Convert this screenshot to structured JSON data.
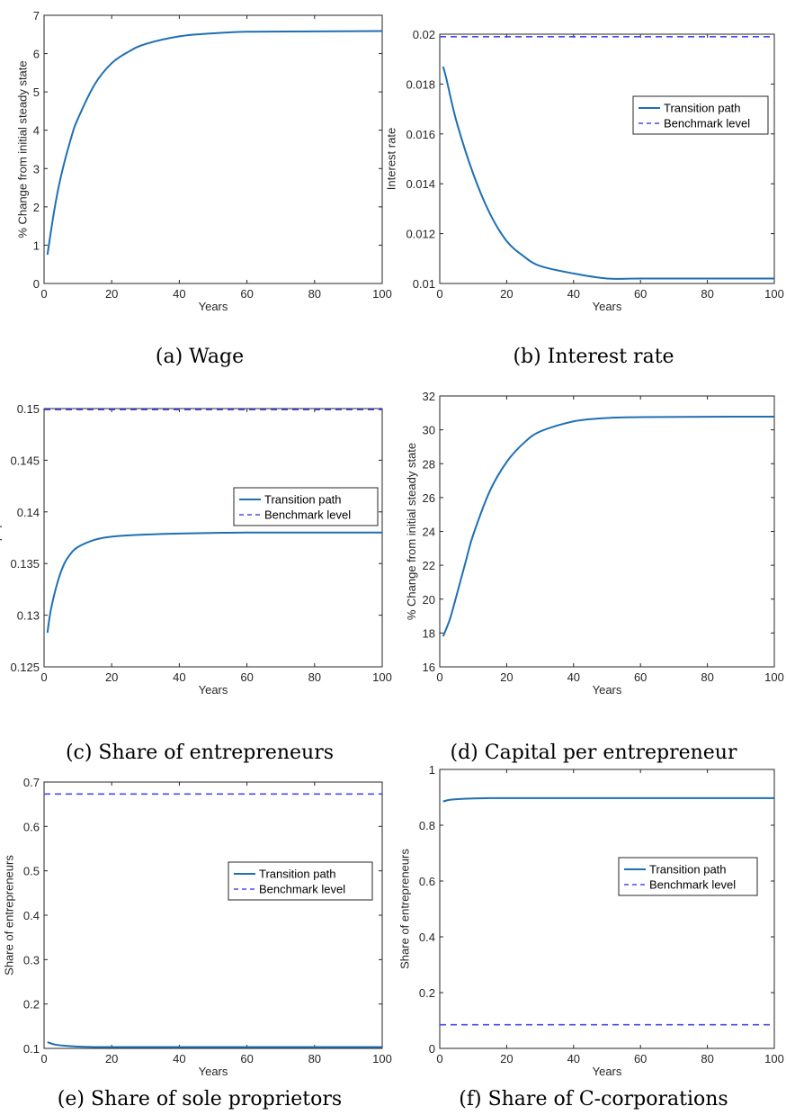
{
  "colors": {
    "path": "#1f6fb3",
    "benchmark": "#4a4af0",
    "axis": "#262626"
  },
  "chart_data": [
    {
      "type": "line",
      "caption": "(a) Wage",
      "xlabel": "Years",
      "ylabel": "% Change from initial steady state",
      "xlim": [
        0,
        100
      ],
      "ylim": [
        0,
        7
      ],
      "xticks": [
        0,
        20,
        40,
        60,
        80,
        100
      ],
      "yticks": [
        0,
        1,
        2,
        3,
        4,
        5,
        6,
        7
      ],
      "tick_labels_y": [
        "0",
        "1",
        "2",
        "3",
        "4",
        "5",
        "6",
        "7"
      ],
      "legend": null,
      "series": [
        {
          "style": "solid",
          "x": [
            1,
            3,
            5,
            8,
            10,
            15,
            20,
            25,
            30,
            40,
            50,
            60,
            80,
            100
          ],
          "y": [
            0.75,
            1.9,
            2.8,
            3.8,
            4.3,
            5.2,
            5.75,
            6.05,
            6.25,
            6.45,
            6.53,
            6.57,
            6.58,
            6.59
          ]
        }
      ]
    },
    {
      "type": "line",
      "caption": "(b) Interest rate",
      "xlabel": "Years",
      "ylabel": "Interest rate",
      "xlim": [
        0,
        100
      ],
      "ylim": [
        0.01,
        0.02
      ],
      "xticks": [
        0,
        20,
        40,
        60,
        80,
        100
      ],
      "yticks": [
        0.01,
        0.012,
        0.014,
        0.016,
        0.018,
        0.02
      ],
      "tick_labels_y": [
        "0.01",
        "0.012",
        "0.014",
        "0.016",
        "0.018",
        "0.02"
      ],
      "legend": {
        "position": "upper-right",
        "entries": [
          "Transition path",
          "Benchmark level"
        ]
      },
      "series": [
        {
          "name": "Transition path",
          "style": "solid",
          "x": [
            1,
            2,
            5,
            10,
            15,
            20,
            25,
            30,
            40,
            50,
            60,
            80,
            100
          ],
          "y": [
            0.0187,
            0.0182,
            0.0165,
            0.0144,
            0.0128,
            0.0117,
            0.0111,
            0.0107,
            0.0104,
            0.0102,
            0.0102,
            0.0102,
            0.0102
          ]
        },
        {
          "name": "Benchmark level",
          "style": "dashed",
          "x": [
            0,
            100
          ],
          "y": [
            0.0199,
            0.0199
          ]
        }
      ]
    },
    {
      "type": "line",
      "caption": "(c) Share of entrepreneurs",
      "xlabel": "Years",
      "ylabel": "Share of population",
      "xlim": [
        0,
        100
      ],
      "ylim": [
        0.125,
        0.15
      ],
      "xticks": [
        0,
        20,
        40,
        60,
        80,
        100
      ],
      "yticks": [
        0.125,
        0.13,
        0.135,
        0.14,
        0.145,
        0.15
      ],
      "tick_labels_y": [
        "0.125",
        "0.13",
        "0.135",
        "0.14",
        "0.145",
        "0.15"
      ],
      "legend": {
        "position": "upper-right",
        "entries": [
          "Transition path",
          "Benchmark level"
        ]
      },
      "series": [
        {
          "name": "Transition path",
          "style": "solid",
          "x": [
            1,
            2,
            4,
            6,
            8,
            10,
            15,
            20,
            30,
            40,
            60,
            80,
            100
          ],
          "y": [
            0.1283,
            0.1305,
            0.1332,
            0.135,
            0.136,
            0.1366,
            0.1373,
            0.1376,
            0.1378,
            0.1379,
            0.138,
            0.138,
            0.138
          ]
        },
        {
          "name": "Benchmark level",
          "style": "dashed",
          "x": [
            0,
            100
          ],
          "y": [
            0.1499,
            0.1499
          ]
        }
      ]
    },
    {
      "type": "line",
      "caption": "(d) Capital per entrepreneur",
      "xlabel": "Years",
      "ylabel": "% Change from initial steady state",
      "xlim": [
        0,
        100
      ],
      "ylim": [
        16,
        32
      ],
      "xticks": [
        0,
        20,
        40,
        60,
        80,
        100
      ],
      "yticks": [
        16,
        18,
        20,
        22,
        24,
        26,
        28,
        30,
        32
      ],
      "tick_labels_y": [
        "16",
        "18",
        "20",
        "22",
        "24",
        "26",
        "28",
        "30",
        "32"
      ],
      "legend": null,
      "series": [
        {
          "style": "solid",
          "x": [
            1,
            3,
            5,
            8,
            10,
            15,
            20,
            25,
            30,
            40,
            50,
            60,
            80,
            100
          ],
          "y": [
            17.8,
            18.8,
            20.2,
            22.4,
            23.8,
            26.4,
            28.1,
            29.2,
            29.9,
            30.5,
            30.7,
            30.75,
            30.77,
            30.78
          ]
        }
      ]
    },
    {
      "type": "line",
      "caption": "(e) Share of sole proprietors",
      "xlabel": "Years",
      "ylabel": "Share of entrepreneurs",
      "xlim": [
        0,
        100
      ],
      "ylim": [
        0.1,
        0.7
      ],
      "xticks": [
        0,
        20,
        40,
        60,
        80,
        100
      ],
      "yticks": [
        0.1,
        0.2,
        0.3,
        0.4,
        0.5,
        0.6,
        0.7
      ],
      "tick_labels_y": [
        "0.1",
        "0.2",
        "0.3",
        "0.4",
        "0.5",
        "0.6",
        "0.7"
      ],
      "legend": {
        "position": "center-right",
        "entries": [
          "Transition path",
          "Benchmark level"
        ]
      },
      "series": [
        {
          "name": "Transition path",
          "style": "solid",
          "x": [
            1,
            3,
            6,
            10,
            15,
            20,
            40,
            60,
            80,
            100
          ],
          "y": [
            0.114,
            0.109,
            0.106,
            0.104,
            0.103,
            0.103,
            0.103,
            0.103,
            0.103,
            0.103
          ]
        },
        {
          "name": "Benchmark level",
          "style": "dashed",
          "x": [
            0,
            100
          ],
          "y": [
            0.673,
            0.673
          ]
        }
      ]
    },
    {
      "type": "line",
      "caption": "(f) Share of C-corporations",
      "xlabel": "Years",
      "ylabel": "Share of entrepreneurs",
      "xlim": [
        0,
        100
      ],
      "ylim": [
        0,
        1
      ],
      "xticks": [
        0,
        20,
        40,
        60,
        80,
        100
      ],
      "yticks": [
        0,
        0.2,
        0.4,
        0.6,
        0.8,
        1
      ],
      "tick_labels_y": [
        "0",
        "0.2",
        "0.4",
        "0.6",
        "0.8",
        "1"
      ],
      "legend": {
        "position": "center-right",
        "entries": [
          "Transition path",
          "Benchmark level"
        ]
      },
      "series": [
        {
          "name": "Transition path",
          "style": "solid",
          "x": [
            1,
            3,
            6,
            10,
            15,
            20,
            40,
            60,
            80,
            100
          ],
          "y": [
            0.885,
            0.891,
            0.894,
            0.896,
            0.897,
            0.897,
            0.897,
            0.897,
            0.897,
            0.897
          ]
        },
        {
          "name": "Benchmark level",
          "style": "dashed",
          "x": [
            0,
            100
          ],
          "y": [
            0.085,
            0.085
          ]
        }
      ]
    }
  ]
}
